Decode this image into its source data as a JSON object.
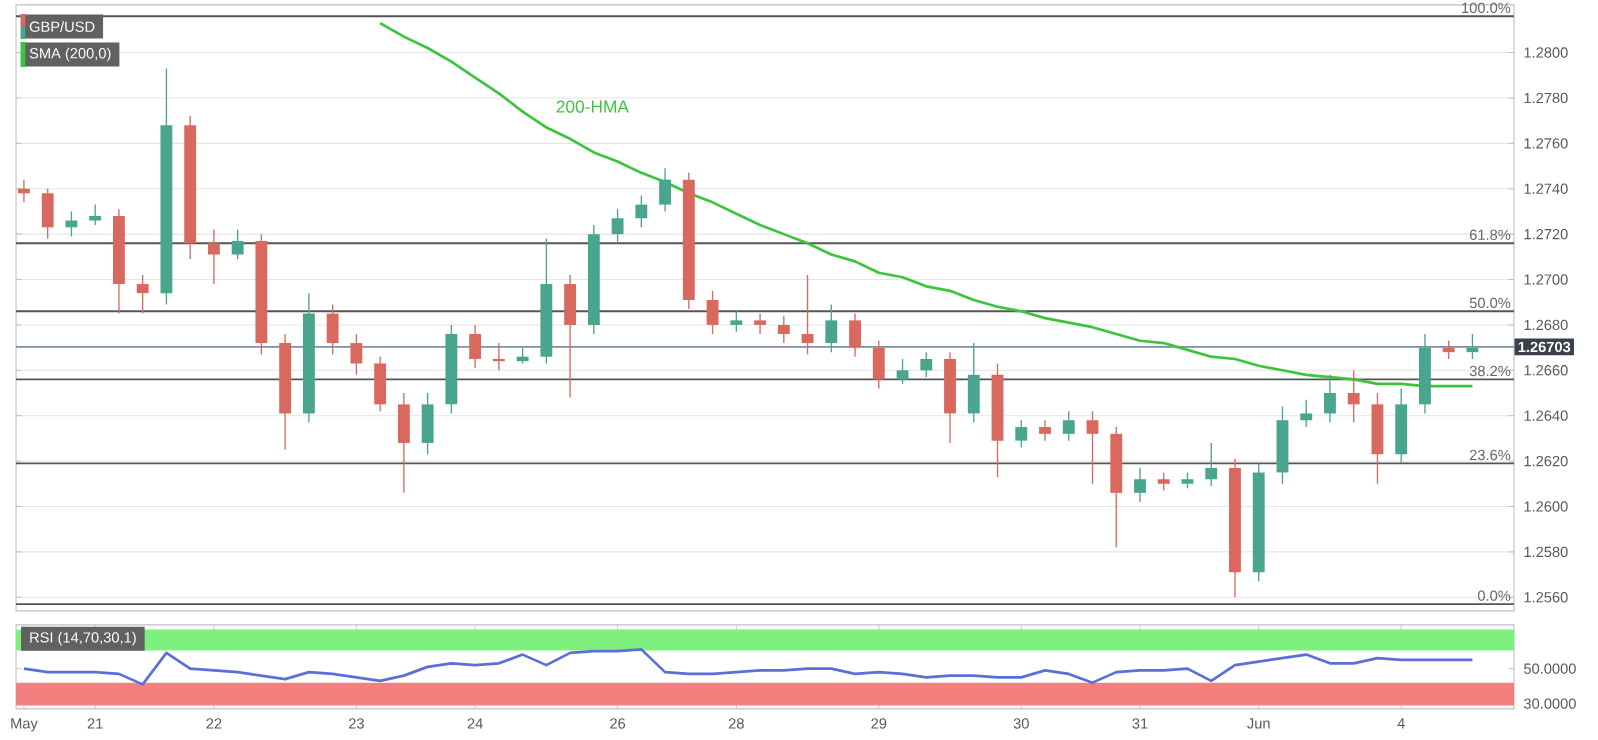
{
  "chart_data": [
    {
      "type": "candlestick",
      "categories": [
        null,
        null,
        null,
        null,
        null,
        null,
        null,
        null,
        null,
        null,
        null,
        null,
        null,
        null,
        null,
        null,
        null,
        null,
        null,
        null,
        null,
        null,
        null,
        null,
        null,
        null,
        null,
        null,
        null,
        null,
        null,
        null,
        null,
        null,
        null,
        null,
        null,
        null,
        null,
        null,
        null,
        null,
        null,
        null,
        null,
        null,
        null,
        null,
        null,
        null,
        null,
        null,
        null,
        null,
        null,
        null,
        null,
        null,
        null,
        null,
        null,
        null
      ],
      "series": [
        {
          "name": "GBP/USD",
          "ohlc": [
            [
              1.274,
              1.2744,
              1.2734,
              1.2738
            ],
            [
              1.2738,
              1.274,
              1.2718,
              1.2723
            ],
            [
              1.2723,
              1.273,
              1.2719,
              1.2726
            ],
            [
              1.2726,
              1.2733,
              1.2724,
              1.2728
            ],
            [
              1.2728,
              1.2731,
              1.2685,
              1.2698
            ],
            [
              1.2698,
              1.2702,
              1.2685,
              1.2694
            ],
            [
              1.2694,
              1.2793,
              1.2689,
              1.2768
            ],
            [
              1.2768,
              1.2772,
              1.2709,
              1.2716
            ],
            [
              1.2716,
              1.2722,
              1.2698,
              1.2711
            ],
            [
              1.2711,
              1.2722,
              1.2709,
              1.2717
            ],
            [
              1.2717,
              1.272,
              1.2667,
              1.2672
            ],
            [
              1.2672,
              1.2676,
              1.2625,
              1.2641
            ],
            [
              1.2641,
              1.2694,
              1.2637,
              1.2685
            ],
            [
              1.2685,
              1.2689,
              1.2667,
              1.2672
            ],
            [
              1.2672,
              1.2676,
              1.2658,
              1.2663
            ],
            [
              1.2663,
              1.2666,
              1.2642,
              1.2645
            ],
            [
              1.2645,
              1.265,
              1.2606,
              1.2628
            ],
            [
              1.2628,
              1.265,
              1.2623,
              1.2645
            ],
            [
              1.2645,
              1.268,
              1.2641,
              1.2676
            ],
            [
              1.2676,
              1.268,
              1.2661,
              1.2665
            ],
            [
              1.2665,
              1.2672,
              1.266,
              1.2664
            ],
            [
              1.2664,
              1.267,
              1.2663,
              1.2666
            ],
            [
              1.2666,
              1.2718,
              1.2663,
              1.2698
            ],
            [
              1.2698,
              1.2702,
              1.2648,
              1.268
            ],
            [
              1.268,
              1.2724,
              1.2676,
              1.272
            ],
            [
              1.272,
              1.2731,
              1.2716,
              1.2727
            ],
            [
              1.2727,
              1.2737,
              1.2723,
              1.2733
            ],
            [
              1.2733,
              1.2749,
              1.273,
              1.2744
            ],
            [
              1.2744,
              1.2747,
              1.2687,
              1.2691
            ],
            [
              1.2691,
              1.2695,
              1.2676,
              1.268
            ],
            [
              1.268,
              1.2686,
              1.2677,
              1.2682
            ],
            [
              1.2682,
              1.2685,
              1.2676,
              1.268
            ],
            [
              1.268,
              1.2684,
              1.2672,
              1.2676
            ],
            [
              1.2676,
              1.2702,
              1.2667,
              1.2672
            ],
            [
              1.2672,
              1.2689,
              1.2668,
              1.2682
            ],
            [
              1.2682,
              1.2685,
              1.2666,
              1.267
            ],
            [
              1.267,
              1.2673,
              1.2652,
              1.2656
            ],
            [
              1.2656,
              1.2665,
              1.2654,
              1.266
            ],
            [
              1.266,
              1.2668,
              1.2657,
              1.2665
            ],
            [
              1.2665,
              1.2668,
              1.2628,
              1.2641
            ],
            [
              1.2641,
              1.2672,
              1.2637,
              1.2658
            ],
            [
              1.2658,
              1.2663,
              1.2613,
              1.2629
            ],
            [
              1.2629,
              1.2638,
              1.2626,
              1.2635
            ],
            [
              1.2635,
              1.2638,
              1.2629,
              1.2632
            ],
            [
              1.2632,
              1.2642,
              1.2629,
              1.2638
            ],
            [
              1.2638,
              1.2642,
              1.261,
              1.2632
            ],
            [
              1.2632,
              1.2635,
              1.2582,
              1.2606
            ],
            [
              1.2606,
              1.2617,
              1.2602,
              1.2612
            ],
            [
              1.2612,
              1.2615,
              1.2607,
              1.261
            ],
            [
              1.261,
              1.2615,
              1.2608,
              1.2612
            ],
            [
              1.2612,
              1.2628,
              1.2609,
              1.2617
            ],
            [
              1.2617,
              1.2621,
              1.256,
              1.2571
            ],
            [
              1.2571,
              1.2619,
              1.2567,
              1.2615
            ],
            [
              1.2615,
              1.2644,
              1.261,
              1.2638
            ],
            [
              1.2638,
              1.2647,
              1.2635,
              1.2641
            ],
            [
              1.2641,
              1.2658,
              1.2637,
              1.265
            ],
            [
              1.265,
              1.266,
              1.2637,
              1.2645
            ],
            [
              1.2645,
              1.265,
              1.261,
              1.2623
            ],
            [
              1.2623,
              1.2652,
              1.2619,
              1.2645
            ],
            [
              1.2645,
              1.2676,
              1.2641,
              1.267
            ],
            [
              1.267,
              1.2673,
              1.2665,
              1.2668
            ],
            [
              1.2668,
              1.2676,
              1.2665,
              1.267
            ]
          ],
          "colors": [
            "#d9695f",
            "#d9695f",
            "#4aa58e",
            "#4aa58e",
            "#d9695f",
            "#d9695f",
            "#4aa58e",
            "#d9695f",
            "#d9695f",
            "#4aa58e",
            "#d9695f",
            "#d9695f",
            "#4aa58e",
            "#d9695f",
            "#d9695f",
            "#d9695f",
            "#d9695f",
            "#4aa58e",
            "#4aa58e",
            "#d9695f",
            "#d9695f",
            "#4aa58e",
            "#4aa58e",
            "#d9695f",
            "#4aa58e",
            "#4aa58e",
            "#4aa58e",
            "#4aa58e",
            "#d9695f",
            "#d9695f",
            "#4aa58e",
            "#d9695f",
            "#d9695f",
            "#d9695f",
            "#4aa58e",
            "#d9695f",
            "#d9695f",
            "#4aa58e",
            "#4aa58e",
            "#d9695f",
            "#4aa58e",
            "#d9695f",
            "#4aa58e",
            "#d9695f",
            "#4aa58e",
            "#d9695f",
            "#d9695f",
            "#4aa58e",
            "#d9695f",
            "#4aa58e",
            "#4aa58e",
            "#d9695f",
            "#4aa58e",
            "#4aa58e",
            "#4aa58e",
            "#4aa58e",
            "#d9695f",
            "#d9695f",
            "#4aa58e",
            "#4aa58e",
            "#d9695f",
            "#4aa58e"
          ]
        },
        {
          "name": "SMA (200,0)",
          "type": "line",
          "color": "#3cc43c",
          "values": [
            null,
            null,
            null,
            null,
            null,
            null,
            null,
            null,
            null,
            null,
            null,
            null,
            null,
            null,
            null,
            1.2813,
            1.2807,
            1.2802,
            1.2796,
            1.2789,
            1.2782,
            1.2774,
            1.2767,
            1.2762,
            1.2756,
            1.2752,
            1.2747,
            1.2743,
            1.2738,
            1.2734,
            1.2729,
            1.2724,
            1.272,
            1.2716,
            1.2711,
            1.2708,
            1.2703,
            1.2701,
            1.2697,
            1.2695,
            1.2691,
            1.2688,
            1.2686,
            1.2683,
            1.2681,
            1.2679,
            1.2676,
            1.2673,
            1.2672,
            1.2669,
            1.2666,
            1.2665,
            1.2662,
            1.266,
            1.2658,
            1.2657,
            1.2656,
            1.2654,
            1.2654,
            1.2653,
            1.2653,
            1.2653
          ]
        }
      ],
      "ylim": [
        1.2554,
        1.2821
      ],
      "yticks": [
        {
          "value": 1.256,
          "label": "1.2560"
        },
        {
          "value": 1.258,
          "label": "1.2580"
        },
        {
          "value": 1.26,
          "label": "1.2600"
        },
        {
          "value": 1.262,
          "label": "1.2620"
        },
        {
          "value": 1.264,
          "label": "1.2640"
        },
        {
          "value": 1.266,
          "label": "1.2660"
        },
        {
          "value": 1.268,
          "label": "1.2680"
        },
        {
          "value": 1.27,
          "label": "1.2700"
        },
        {
          "value": 1.272,
          "label": "1.2720"
        },
        {
          "value": 1.274,
          "label": "1.2740"
        },
        {
          "value": 1.276,
          "label": "1.2760"
        },
        {
          "value": 1.278,
          "label": "1.2780"
        },
        {
          "value": 1.28,
          "label": "1.2800"
        }
      ],
      "tick_labels": "y",
      "grid": "y",
      "legend": "top left",
      "ref_lines": [
        {
          "axis": "y",
          "value": 1.26703,
          "label": "1.26703",
          "color": "#7d8fa3"
        },
        {
          "axis": "y",
          "value": 1.2816,
          "color": "#555555"
        },
        {
          "axis": "y",
          "value": 1.2716,
          "color": "#555555"
        },
        {
          "axis": "y",
          "value": 1.2686,
          "color": "#555555"
        },
        {
          "axis": "y",
          "value": 1.2656,
          "color": "#555555"
        },
        {
          "axis": "y",
          "value": 1.2619,
          "color": "#555555"
        },
        {
          "axis": "y",
          "value": 1.2557,
          "color": "#555555"
        }
      ],
      "annotations": [
        "200-HMA",
        {
          "text": "100.0%",
          "y": 1.2816
        },
        {
          "text": "61.8%",
          "y": 1.2716
        },
        {
          "text": "50.0%",
          "y": 1.2686
        },
        {
          "text": "38.2%",
          "y": 1.2656
        },
        {
          "text": "23.6%",
          "y": 1.2619
        },
        {
          "text": "0.0%",
          "y": 1.2557
        }
      ]
    },
    {
      "type": "line",
      "categories": [
        "May",
        null,
        null,
        "21",
        null,
        null,
        null,
        null,
        "22",
        null,
        null,
        null,
        null,
        null,
        "23",
        null,
        null,
        null,
        null,
        "24",
        null,
        null,
        null,
        null,
        null,
        "26",
        null,
        null,
        null,
        null,
        "28",
        null,
        null,
        null,
        null,
        null,
        "29",
        null,
        null,
        null,
        null,
        null,
        "30",
        null,
        null,
        null,
        null,
        "31",
        null,
        null,
        null,
        null,
        "Jun",
        null,
        null,
        null,
        null,
        null,
        "4",
        null,
        null,
        null
      ],
      "series": [
        {
          "name": "RSI (14,70,30,1)",
          "color": "#5b6fd8",
          "values": [
            50,
            48,
            48,
            48,
            47,
            41,
            59,
            50,
            49,
            48,
            46,
            44,
            48,
            47,
            45,
            43,
            46,
            51,
            53,
            52,
            53,
            58,
            52,
            59,
            60,
            60,
            61,
            48,
            47,
            47,
            48,
            49,
            49,
            50,
            50,
            47,
            48,
            47,
            45,
            46,
            46,
            45,
            45,
            49,
            47,
            42,
            48,
            49,
            49,
            50,
            43,
            52,
            54,
            56,
            58,
            53,
            53,
            56,
            55,
            55,
            55,
            55
          ]
        }
      ],
      "ylim": [
        27,
        75
      ],
      "yticks": [
        {
          "value": 30,
          "label": "30.0000"
        },
        {
          "value": 50,
          "label": "50.0000"
        }
      ],
      "bands": [
        {
          "axis": "y",
          "from": 60.3,
          "to": 72.3,
          "color": "#7ef07e"
        },
        {
          "axis": "y",
          "from": 28.9,
          "to": 42,
          "color": "#f47f7f"
        }
      ],
      "legend": "top left"
    }
  ]
}
